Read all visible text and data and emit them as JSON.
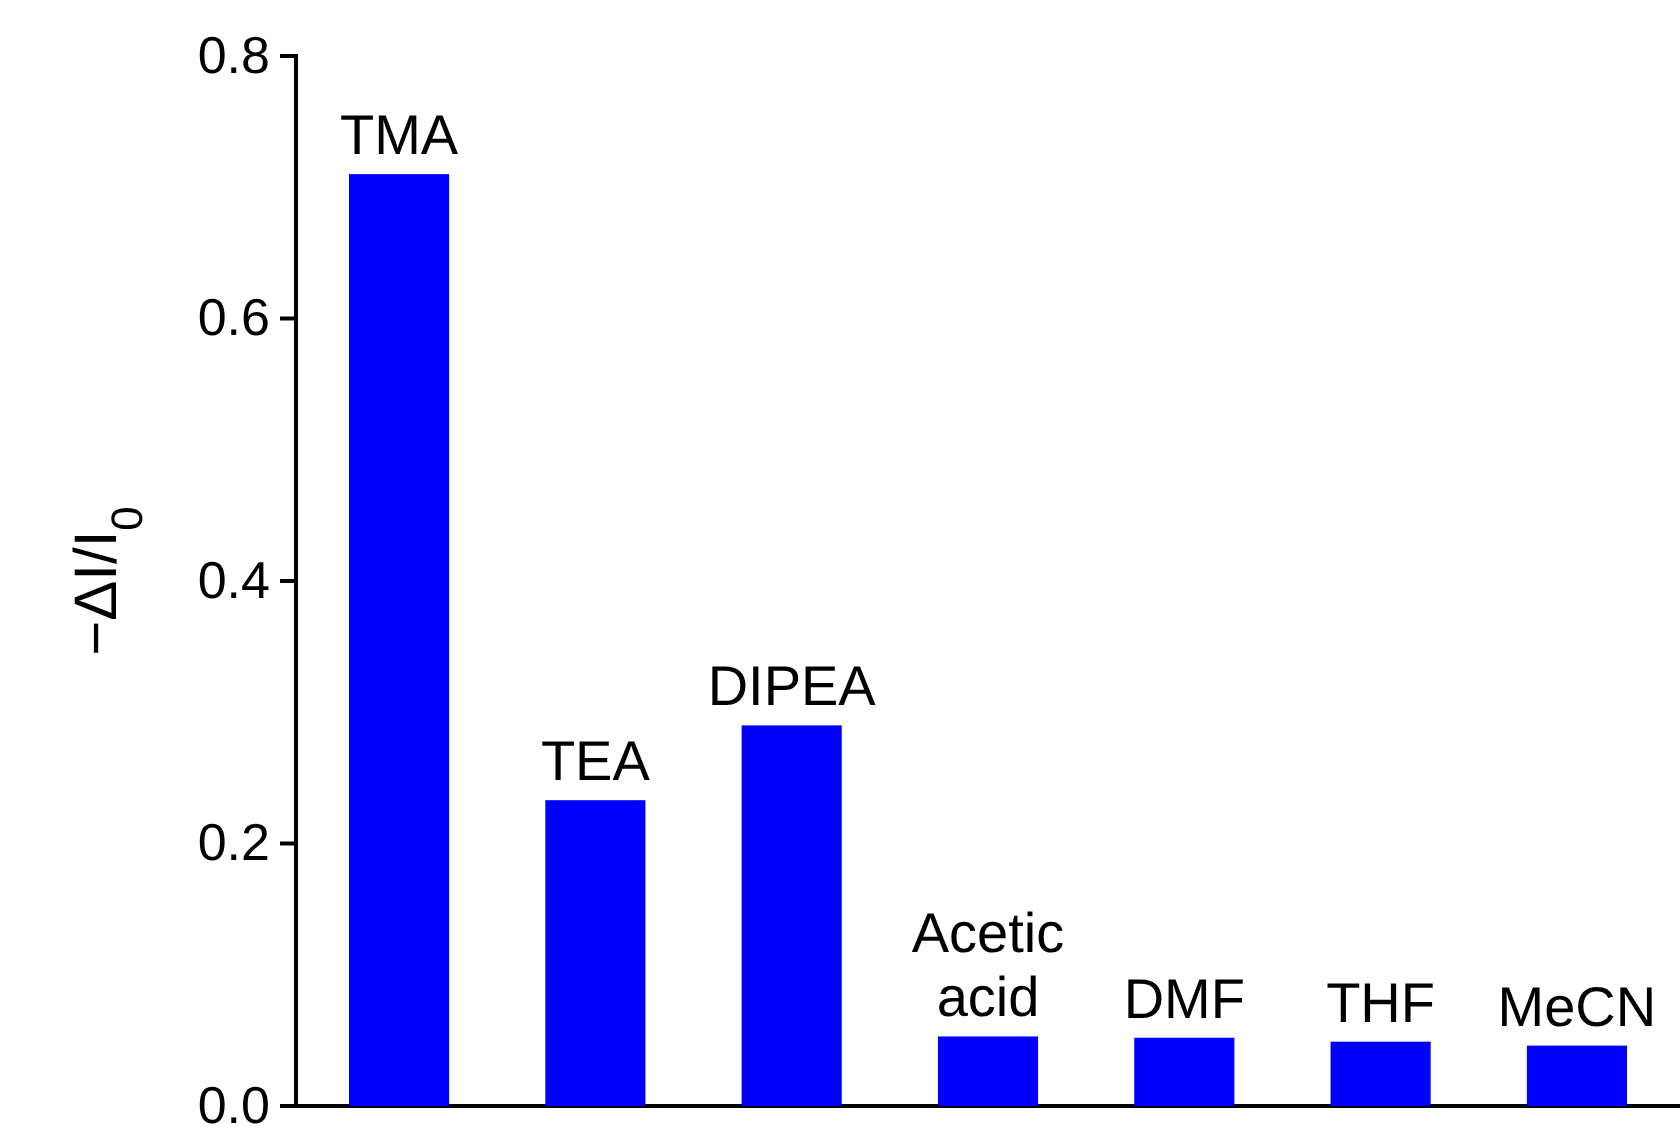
{
  "chart_data": {
    "type": "bar",
    "ylabel": "−ΔI/I$_{0}$",
    "categories": [
      "TMA",
      "TEA",
      "DIPEA",
      "Acetic acid",
      "DMF",
      "THF",
      "MeCN"
    ],
    "values": [
      0.71,
      0.233,
      0.29,
      0.053,
      0.052,
      0.049,
      0.046
    ],
    "color": "#0000ff",
    "ylim": [
      0,
      0.8
    ],
    "yticks": [
      {
        "value": 0,
        "label": "0.0"
      },
      {
        "value": 0.2,
        "label": "0.2"
      },
      {
        "value": 0.4,
        "label": "0.4"
      },
      {
        "value": 0.6,
        "label": "0.6"
      },
      {
        "value": 0.8,
        "label": "0.8"
      }
    ],
    "grid": false,
    "tick_labels": "y"
  }
}
